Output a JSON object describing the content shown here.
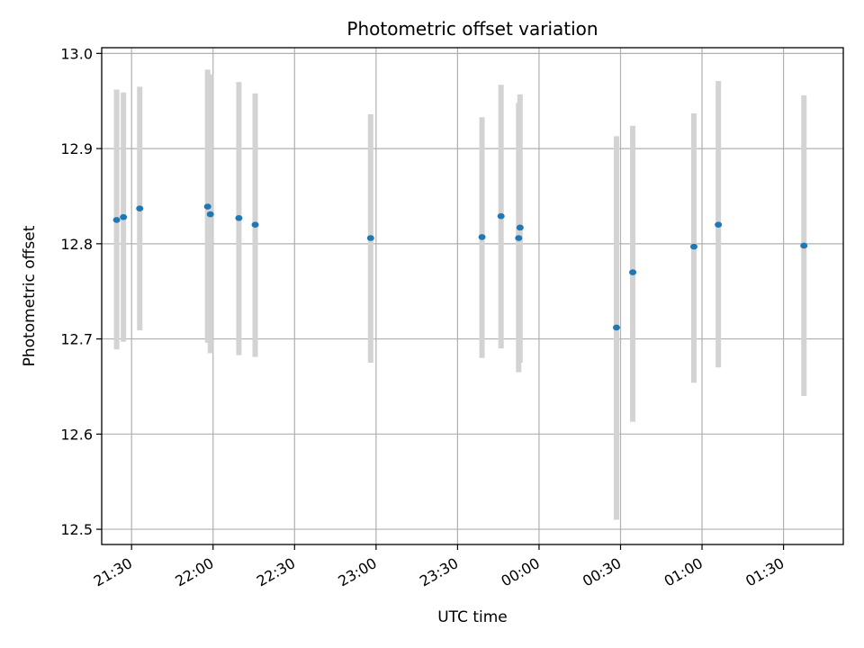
{
  "chart_data": {
    "type": "scatter",
    "title": "Photometric offset variation",
    "xlabel": "UTC time",
    "ylabel": "Photometric offset",
    "ylim": [
      12.484,
      13.006
    ],
    "xlim": [
      "21:19",
      "01:52"
    ],
    "grid": true,
    "y_ticks": [
      12.5,
      12.6,
      12.7,
      12.8,
      12.9,
      13.0
    ],
    "y_tick_labels": [
      "12.5",
      "12.6",
      "12.7",
      "12.8",
      "12.9",
      "13.0"
    ],
    "x_tick_times": [
      "21:30",
      "22:00",
      "22:30",
      "23:00",
      "23:30",
      "00:00",
      "00:30",
      "01:00",
      "01:30"
    ],
    "x_tick_labels": [
      "21:30",
      "22:00",
      "22:30",
      "23:00",
      "23:30",
      "00:00",
      "00:30",
      "01:00",
      "01:30"
    ],
    "points": [
      {
        "t": "21:24:30",
        "y": 12.825,
        "lo": 12.689,
        "hi": 12.962
      },
      {
        "t": "21:27:00",
        "y": 12.828,
        "lo": 12.697,
        "hi": 12.959
      },
      {
        "t": "21:33:00",
        "y": 12.837,
        "lo": 12.709,
        "hi": 12.965
      },
      {
        "t": "21:58:00",
        "y": 12.839,
        "lo": 12.696,
        "hi": 12.983
      },
      {
        "t": "21:59:00",
        "y": 12.831,
        "lo": 12.685,
        "hi": 12.978
      },
      {
        "t": "22:09:30",
        "y": 12.827,
        "lo": 12.683,
        "hi": 12.97
      },
      {
        "t": "22:15:30",
        "y": 12.82,
        "lo": 12.681,
        "hi": 12.958
      },
      {
        "t": "22:58:00",
        "y": 12.806,
        "lo": 12.675,
        "hi": 12.936
      },
      {
        "t": "23:39:00",
        "y": 12.807,
        "lo": 12.68,
        "hi": 12.933
      },
      {
        "t": "23:46:00",
        "y": 12.829,
        "lo": 12.69,
        "hi": 12.967
      },
      {
        "t": "23:52:30",
        "y": 12.806,
        "lo": 12.665,
        "hi": 12.948
      },
      {
        "t": "23:53:00",
        "y": 12.817,
        "lo": 12.675,
        "hi": 12.957
      },
      {
        "t": "00:28:30",
        "y": 12.712,
        "lo": 12.51,
        "hi": 12.913
      },
      {
        "t": "00:34:30",
        "y": 12.77,
        "lo": 12.613,
        "hi": 12.924
      },
      {
        "t": "00:57:00",
        "y": 12.797,
        "lo": 12.654,
        "hi": 12.937
      },
      {
        "t": "01:06:00",
        "y": 12.82,
        "lo": 12.67,
        "hi": 12.971
      },
      {
        "t": "01:37:30",
        "y": 12.798,
        "lo": 12.64,
        "hi": 12.956
      }
    ],
    "colors": {
      "point": "#1f77b4",
      "errorbar": "#d3d3d3",
      "grid": "#b0b0b0",
      "axis": "#000000"
    }
  }
}
